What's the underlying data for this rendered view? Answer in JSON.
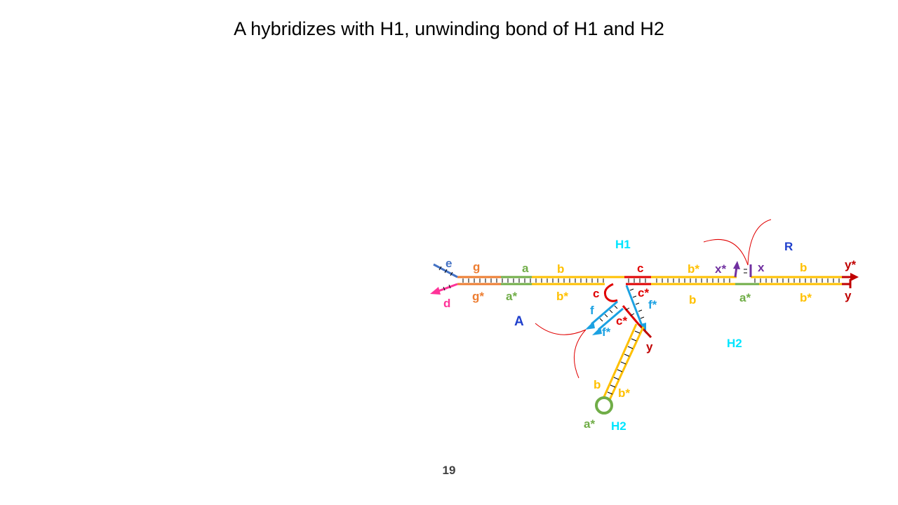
{
  "slide": {
    "title": "A hybridizes with H1, unwinding bond of H1 and H2",
    "page_number": "19"
  },
  "colors": {
    "orange": "#ED7D31",
    "green": "#70AD47",
    "yellow": "#FFC000",
    "red": "#E00000",
    "dark_red": "#C00000",
    "sky_blue": "#1BA1E2",
    "steel_blue": "#4472C4",
    "pink": "#FF3399",
    "purple": "#7030A0",
    "cyan": "#00E5FF",
    "navy": "#1F3FCC"
  },
  "labels": {
    "e": "e",
    "d": "d",
    "g": "g",
    "g_star": "g*",
    "a_top": "a",
    "a_star_left": "a*",
    "b_top_left": "b",
    "b_star_left": "b*",
    "H1_top": "H1",
    "c_top": "c",
    "c_left": "c",
    "c_star_top": "c*",
    "f_star_top": "f*",
    "b_star_mid": "b*",
    "b_mid_below": "b",
    "x_star": "x*",
    "x": "x",
    "a_star_right": "a*",
    "R": "R",
    "b_top_right": "b",
    "b_star_right": "b*",
    "y_star": "y*",
    "y_right": "y",
    "A": "A",
    "f": "f",
    "f_star_lower": "f*",
    "c_star_lower": "c*",
    "y_lower": "y",
    "H2_right": "H2",
    "b_stem": "b",
    "b_star_stem": "b*",
    "a_star_loop": "a*",
    "H2_bottom": "H2"
  }
}
